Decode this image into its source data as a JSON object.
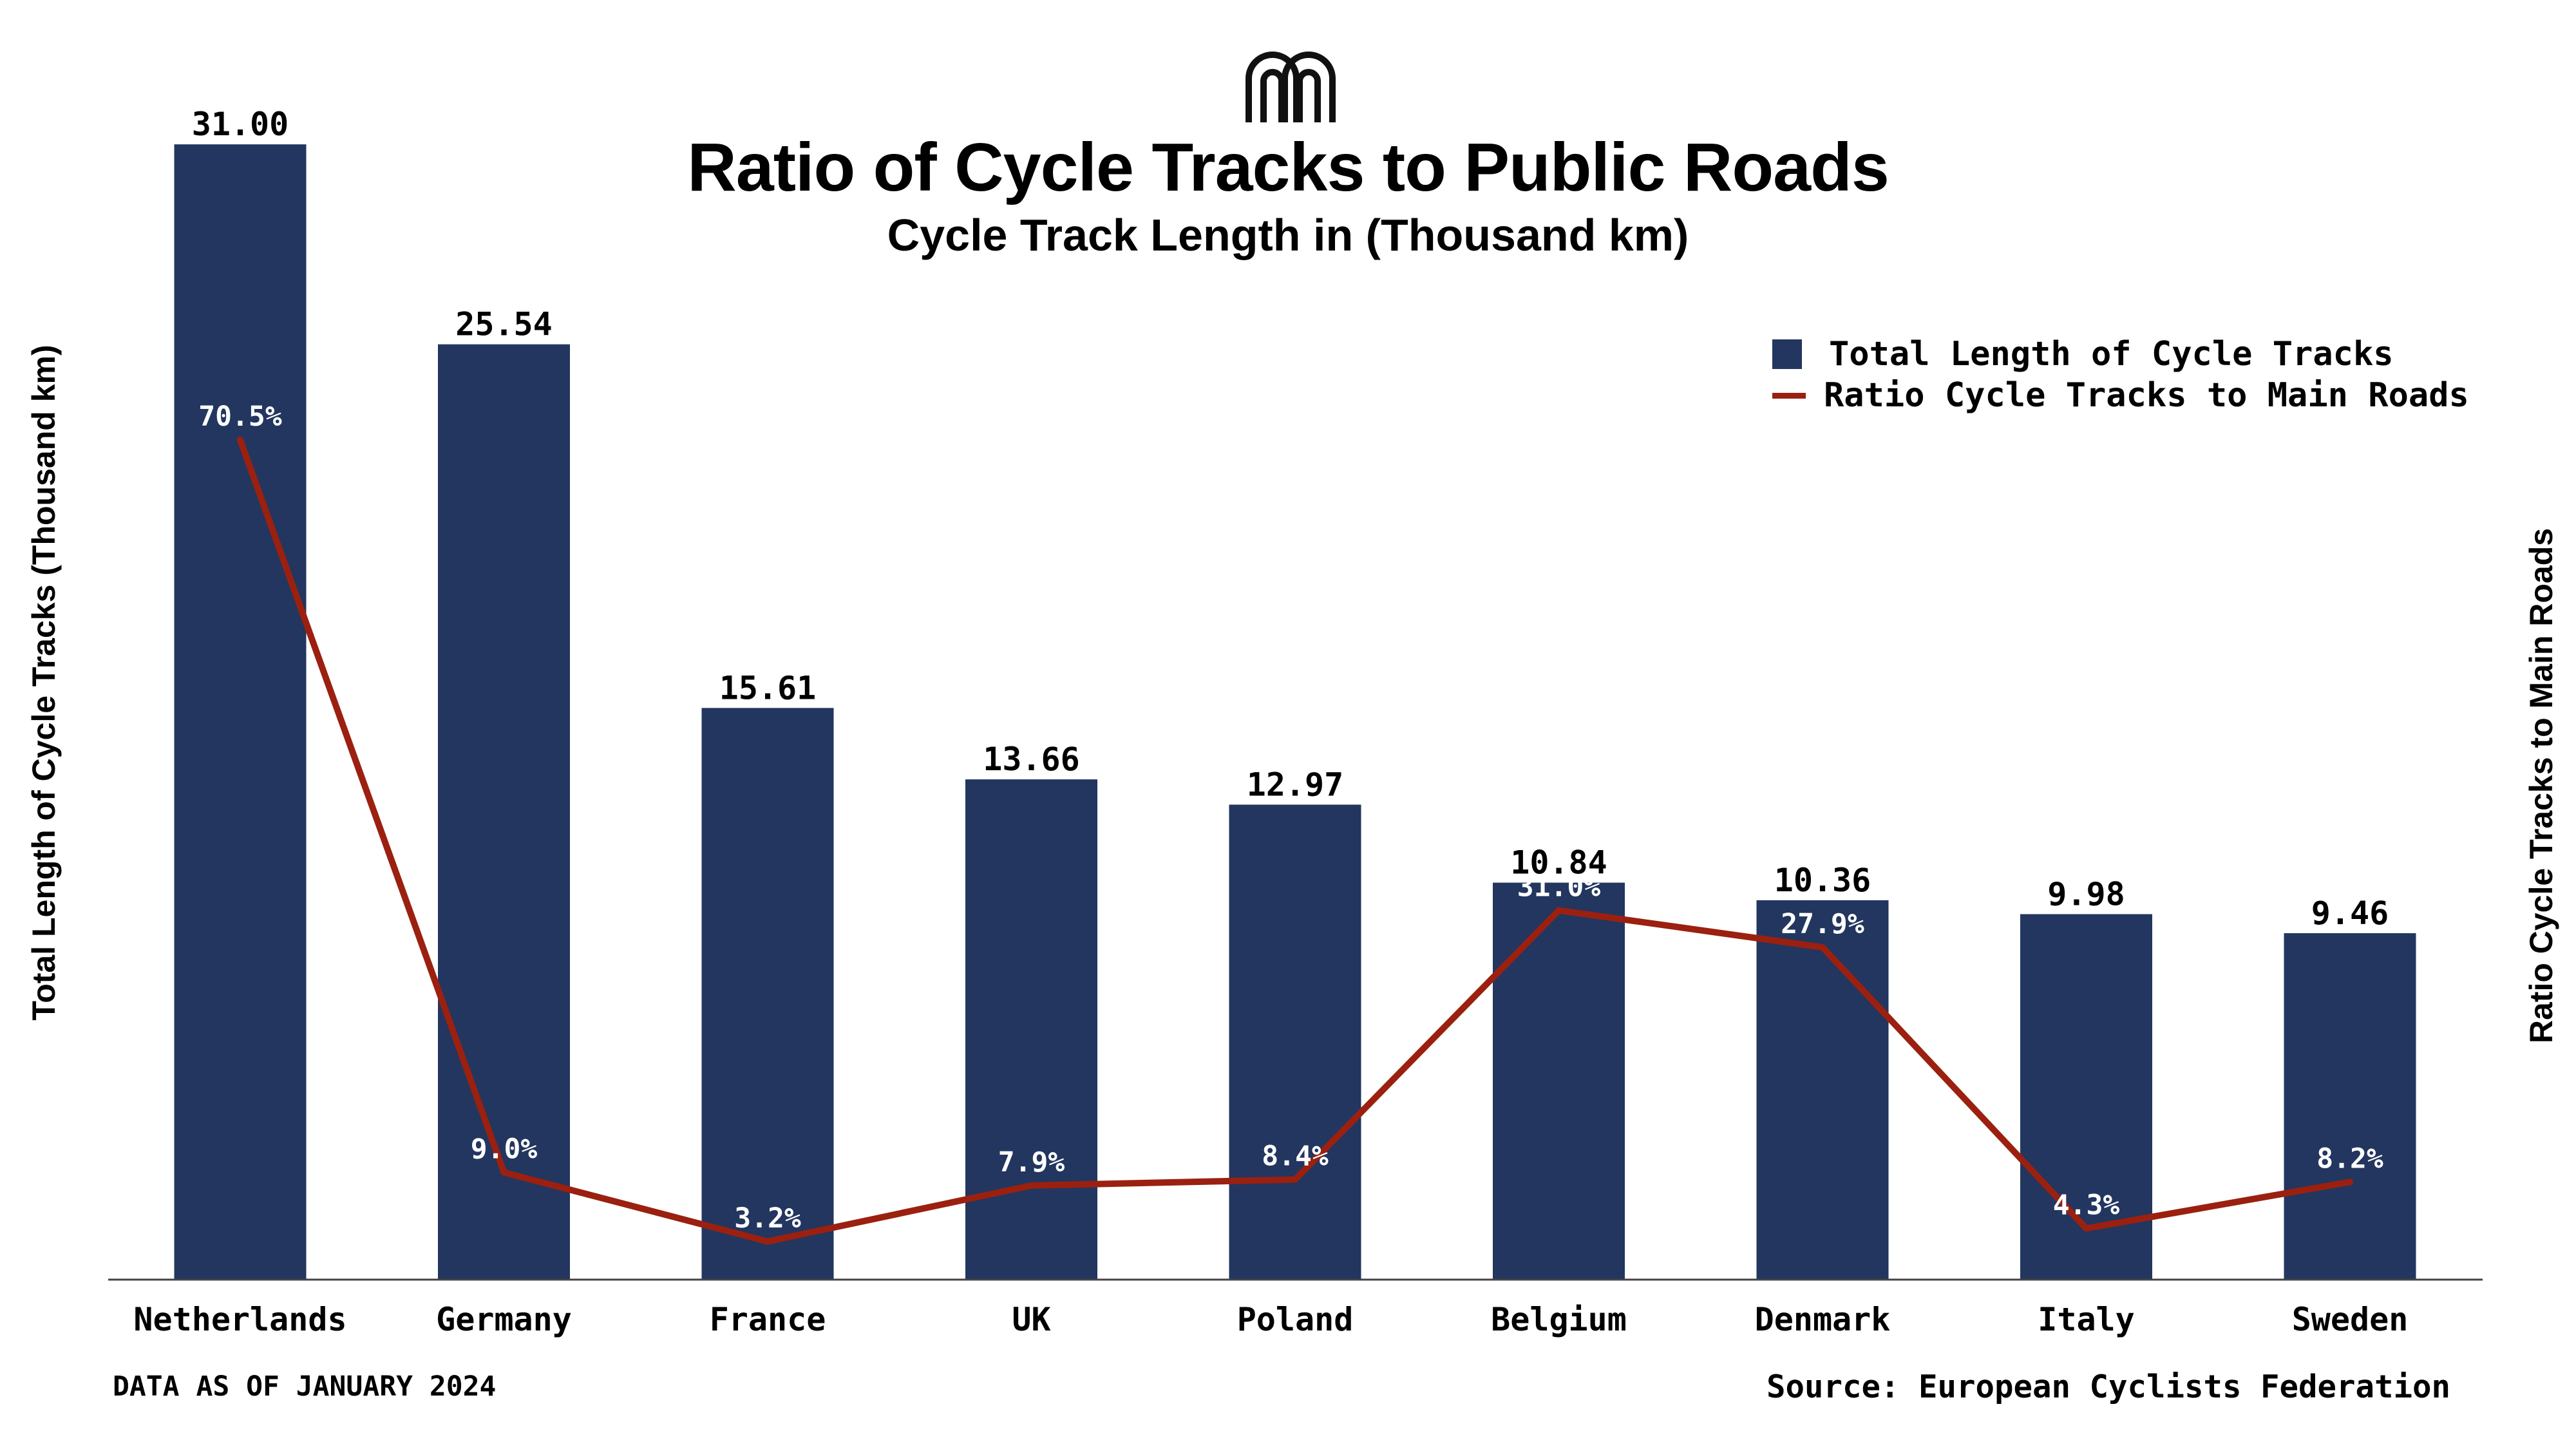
{
  "header": {
    "logo": "cyclist-federation-logo",
    "title": "Ratio of Cycle Tracks to Public Roads",
    "subtitle": "Cycle Track Length in (Thousand km)"
  },
  "footer": {
    "note": "DATA AS OF JANUARY 2024",
    "source": "Source: European Cyclists Federation"
  },
  "colors": {
    "bar": "#22365F",
    "line": "#9B2010",
    "text": "#000000",
    "inner_label": "#FFFFFF"
  },
  "chart_data": {
    "type": "bar",
    "title": "Ratio of Cycle Tracks to Public Roads",
    "subtitle": "Cycle Track Length in (Thousand km)",
    "categories": [
      "Netherlands",
      "Germany",
      "France",
      "UK",
      "Poland",
      "Belgium",
      "Denmark",
      "Italy",
      "Sweden"
    ],
    "series": [
      {
        "name": "Total Length of Cycle Tracks",
        "type": "bar",
        "axis": "left",
        "values": [
          31.0,
          25.54,
          15.61,
          13.66,
          12.97,
          10.84,
          10.36,
          9.98,
          9.46
        ],
        "labels": [
          "31.00",
          "25.54",
          "15.61",
          "13.66",
          "12.97",
          "10.84",
          "10.36",
          "9.98",
          "9.46"
        ]
      },
      {
        "name": "Ratio Cycle Tracks to Main Roads",
        "type": "line",
        "axis": "right",
        "values": [
          70.5,
          9.0,
          3.2,
          7.9,
          8.4,
          31.0,
          27.9,
          4.3,
          8.2
        ],
        "labels": [
          "70.5%",
          "9.0%",
          "3.2%",
          "7.9%",
          "8.4%",
          "31.0%",
          "27.9%",
          "4.3%",
          "8.2%"
        ]
      }
    ],
    "ylabel": "Total Length of Cycle Tracks  (Thousand km)",
    "y2label": "Ratio Cycle Tracks to Main Roads",
    "ylim": [
      0,
      33.5
    ],
    "y2lim": [
      0,
      103
    ],
    "grid": false,
    "legend": "top-right"
  }
}
